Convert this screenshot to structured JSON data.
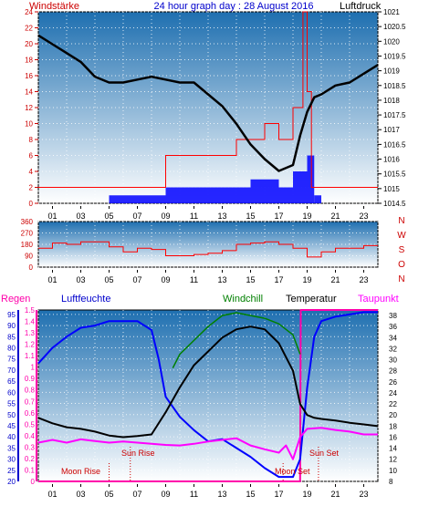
{
  "header": {
    "title": "24 hour graph day : 28 August 2016",
    "left_label": "Windstärke",
    "right_label": "Luftdruck"
  },
  "colors": {
    "panel_top": "#1e6fb0",
    "panel_bottom": "#ffffff",
    "wind": "#ff0000",
    "gust": "#0000ff",
    "pressure": "#000000",
    "humidity": "#0000ff",
    "temperature": "#000000",
    "windchill": "#008000",
    "dewpoint": "#ff00ff",
    "rain": "#ff00aa",
    "header_title": "#0000cc",
    "axis_red": "#cc0000"
  },
  "chart_data": [
    {
      "type": "bar",
      "panel": "wind-pressure",
      "x_ticks": [
        "01",
        "03",
        "05",
        "07",
        "09",
        "11",
        "13",
        "15",
        "17",
        "19",
        "21",
        "23"
      ],
      "y_left": {
        "label": "Windstärke",
        "ticks": [
          0,
          2,
          4,
          6,
          8,
          10,
          12,
          14,
          16,
          18,
          20,
          22,
          24
        ],
        "range": [
          0,
          24
        ]
      },
      "y_right": {
        "label": "Luftdruck",
        "ticks": [
          "1014.5",
          "1015",
          "1015.5",
          "1016",
          "1016.5",
          "1017",
          "1017.5",
          "1018",
          "1018.5",
          "1019",
          "1019.5",
          "1020",
          "1020.5",
          "1021"
        ],
        "range": [
          1014.5,
          1021
        ]
      },
      "pressure": {
        "hours": [
          0,
          1,
          2,
          3,
          4,
          5,
          6,
          7,
          8,
          9,
          10,
          11,
          12,
          13,
          14,
          15,
          16,
          17,
          18,
          18.5,
          19,
          19.5,
          20,
          21,
          22,
          23,
          24
        ],
        "values": [
          1020.2,
          1019.9,
          1019.6,
          1019.3,
          1018.8,
          1018.6,
          1018.6,
          1018.7,
          1018.8,
          1018.7,
          1018.6,
          1018.6,
          1018.2,
          1017.8,
          1017.2,
          1016.5,
          1016.0,
          1015.6,
          1015.8,
          1016.8,
          1017.6,
          1018.1,
          1018.2,
          1018.5,
          1018.6,
          1018.9,
          1019.2
        ]
      },
      "wind_mean": {
        "hours": [
          0,
          1,
          2,
          3,
          4,
          5,
          6,
          7,
          8,
          9,
          10,
          11,
          12,
          13,
          14,
          15,
          16,
          17,
          18,
          19,
          19.5,
          20,
          21,
          22,
          23,
          24
        ],
        "values": [
          0,
          0,
          0,
          0,
          0,
          1,
          1,
          1,
          1,
          2,
          2,
          2,
          2,
          2,
          2,
          3,
          3,
          2,
          4,
          6,
          1,
          0,
          0,
          0,
          0,
          0
        ]
      },
      "wind_gust": {
        "hours": [
          0,
          1,
          2,
          3,
          4,
          5,
          6,
          7,
          8,
          9,
          10,
          11,
          12,
          13,
          14,
          15,
          16,
          17,
          18,
          18.7,
          19,
          19.3,
          20,
          21,
          22,
          23,
          24
        ],
        "values": [
          2,
          2,
          2,
          2,
          2,
          2,
          2,
          2,
          2,
          6,
          6,
          6,
          6,
          6,
          8,
          8,
          10,
          8,
          12,
          24,
          14,
          2,
          2,
          2,
          2,
          2,
          2
        ]
      }
    },
    {
      "type": "line",
      "panel": "wind-direction",
      "x_ticks": [
        "01",
        "03",
        "05",
        "07",
        "09",
        "11",
        "13",
        "15",
        "17",
        "19",
        "21",
        "23"
      ],
      "y_left": {
        "ticks": [
          0,
          90,
          180,
          270,
          360
        ],
        "range": [
          0,
          360
        ]
      },
      "y_right_labels": [
        "N",
        "W",
        "S",
        "O",
        "N"
      ],
      "series": [
        {
          "hours": [
            0,
            1,
            2,
            3,
            4,
            5,
            6,
            7,
            8,
            9,
            10,
            11,
            12,
            13,
            14,
            15,
            16,
            17,
            18,
            19,
            20,
            21,
            22,
            23,
            24
          ],
          "values": [
            150,
            190,
            180,
            200,
            200,
            160,
            120,
            150,
            140,
            90,
            90,
            100,
            110,
            130,
            180,
            190,
            200,
            180,
            150,
            80,
            120,
            150,
            150,
            170,
            170
          ]
        }
      ]
    },
    {
      "type": "line",
      "panel": "temperature-humidity",
      "x_ticks": [
        "01",
        "03",
        "05",
        "07",
        "09",
        "11",
        "13",
        "15",
        "17",
        "19",
        "21",
        "23"
      ],
      "legend": [
        "Regen",
        "Luftfeuchte",
        "Windchill",
        "Temperatur",
        "Taupunkt"
      ],
      "y_rain": {
        "label": "Regen",
        "ticks": [
          "0",
          "0.1",
          "0.2",
          "0.3",
          "0.4",
          "0.5",
          "0.6",
          "0.7",
          "0.8",
          "0.9",
          "1",
          "1.1",
          "1.2",
          "1.3",
          "1.4",
          "1.5"
        ],
        "range": [
          0,
          1.5
        ]
      },
      "y_humidity": {
        "label": "Luftfeuchte",
        "ticks": [
          20,
          25,
          30,
          35,
          40,
          45,
          50,
          55,
          60,
          65,
          70,
          75,
          80,
          85,
          90,
          95
        ],
        "range": [
          20,
          97
        ]
      },
      "y_temperature": {
        "label": "Temperatur",
        "ticks": [
          8,
          10,
          12,
          14,
          16,
          18,
          20,
          22,
          24,
          26,
          28,
          30,
          32,
          34,
          36,
          38
        ],
        "range": [
          8,
          39
        ]
      },
      "humidity": {
        "hours": [
          0,
          1,
          2,
          3,
          4,
          5,
          6,
          7,
          8,
          8.5,
          9,
          10,
          11,
          12,
          13,
          14,
          15,
          16,
          17,
          18,
          18.5,
          19,
          19.5,
          20,
          21,
          22,
          23,
          24
        ],
        "values": [
          73,
          80,
          85,
          89,
          90,
          92,
          92,
          92,
          88,
          75,
          58,
          49,
          43,
          38,
          39,
          35,
          31,
          26,
          22,
          22,
          30,
          62,
          85,
          92,
          94,
          95,
          96,
          96
        ]
      },
      "temperature": {
        "hours": [
          0,
          1,
          2,
          3,
          4,
          5,
          6,
          7,
          8,
          9,
          10,
          11,
          12,
          13,
          14,
          15,
          16,
          17,
          18,
          18.5,
          19,
          19.5,
          20,
          21,
          22,
          23,
          24
        ],
        "values": [
          19.5,
          18.5,
          17.8,
          17.5,
          17.0,
          16.3,
          16.0,
          16.2,
          16.5,
          20.5,
          25.0,
          29.0,
          31.5,
          34.0,
          35.5,
          36.0,
          35.5,
          33.0,
          28.0,
          22.0,
          20.0,
          19.5,
          19.3,
          19.0,
          18.6,
          18.3,
          18.0
        ]
      },
      "windchill": {
        "hours": [
          9.5,
          10,
          11,
          12,
          13,
          14,
          15,
          16,
          17,
          18,
          18.5
        ],
        "values": [
          28.5,
          31.0,
          33.5,
          36.0,
          38.0,
          38.5,
          38.0,
          37.5,
          36.5,
          34.5,
          31.0
        ]
      },
      "dewpoint": {
        "hours": [
          0,
          1,
          2,
          3,
          4,
          5,
          6,
          7,
          8,
          9,
          10,
          11,
          12,
          13,
          14,
          15,
          16,
          17,
          17.5,
          18,
          18.5,
          19,
          20,
          21,
          22,
          23,
          24
        ],
        "values": [
          15.0,
          15.5,
          15.0,
          15.6,
          15.3,
          15.0,
          15.2,
          15.0,
          14.8,
          14.6,
          14.5,
          14.8,
          15.2,
          15.5,
          15.8,
          14.5,
          13.8,
          13.2,
          14.5,
          12.0,
          16.0,
          17.5,
          17.7,
          17.3,
          17.0,
          16.5,
          16.5
        ]
      },
      "rain": {
        "hours": [
          0,
          18.5,
          18.55,
          24
        ],
        "values": [
          0,
          0,
          1.5,
          1.5
        ]
      },
      "annotations": [
        "Sun Rise",
        "Sun Set",
        "Moon Rise",
        "Moon Set"
      ],
      "annotation_hours": [
        6.5,
        19.8,
        5.0,
        17.3
      ]
    }
  ]
}
